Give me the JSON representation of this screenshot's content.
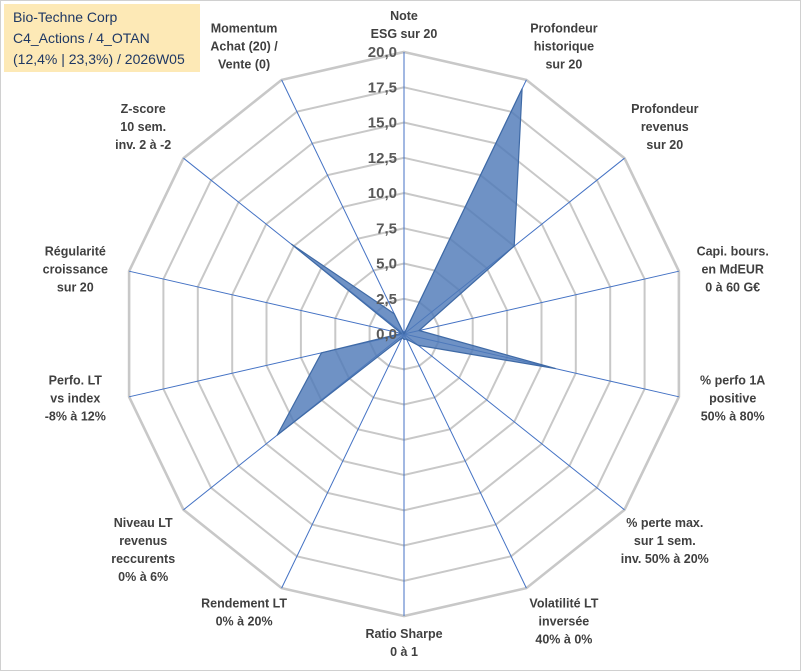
{
  "chart_data": {
    "type": "radar",
    "title_lines": [
      "Bio-Techne Corp",
      "C4_Actions / 4_OTAN",
      "(12,4% | 23,3%) / 2026W05"
    ],
    "rmax": 20,
    "ticks": [
      "0,0",
      "2,5",
      "5,0",
      "7,5",
      "10,0",
      "12,5",
      "15,0",
      "17,5",
      "20,0"
    ],
    "axes": [
      {
        "label": [
          "Note",
          "ESG sur 20"
        ],
        "value": 0
      },
      {
        "label": [
          "Profondeur",
          "historique",
          "sur 20"
        ],
        "value": 19.3
      },
      {
        "label": [
          "Profondeur",
          "revenus",
          "sur 20"
        ],
        "value": 10.0
      },
      {
        "label": [
          "Capi. bours.",
          "en MdEUR",
          "0 à 60 G€"
        ],
        "value": 1.1
      },
      {
        "label": [
          "% perfo 1A",
          "positive",
          "50% à 80%"
        ],
        "value": 11.0
      },
      {
        "label": [
          "% perte max.",
          "sur 1 sem.",
          "inv. 50% à 20%"
        ],
        "value": 1.3
      },
      {
        "label": [
          "Volatilité LT",
          "inversée",
          "40% à 0%"
        ],
        "value": 0.4
      },
      {
        "label": [
          "Ratio Sharpe",
          "0 à 1"
        ],
        "value": 0.4
      },
      {
        "label": [
          "Rendement LT",
          "0% à 20%"
        ],
        "value": 0.3
      },
      {
        "label": [
          "Niveau LT",
          "revenus",
          "reccurents",
          "0% à 6%"
        ],
        "value": 11.5
      },
      {
        "label": [
          "Perfo. LT",
          "vs index",
          "-8% à 12%"
        ],
        "value": 6.0
      },
      {
        "label": [
          "Régularité",
          "croissance",
          "sur 20"
        ],
        "value": 0.2
      },
      {
        "label": [
          "Z-score",
          "10 sem.",
          "inv. 2 à -2"
        ],
        "value": 10.2
      },
      {
        "label": [
          "Momentum",
          "Achat (20) /",
          "Vente (0)"
        ],
        "value": 1.6
      }
    ],
    "colors": {
      "fill": "#4f7ab8",
      "fill_opacity": "0.82",
      "stroke": "#3f6aa6",
      "grid": "#c8c8c8",
      "spoke": "#4472c4"
    }
  },
  "title_box": {
    "lines": [
      "Bio-Techne Corp",
      "C4_Actions / 4_OTAN",
      "(12,4% | 23,3%) / 2026W05"
    ],
    "background": "#fde9b6",
    "text_color": "#1f3864"
  }
}
